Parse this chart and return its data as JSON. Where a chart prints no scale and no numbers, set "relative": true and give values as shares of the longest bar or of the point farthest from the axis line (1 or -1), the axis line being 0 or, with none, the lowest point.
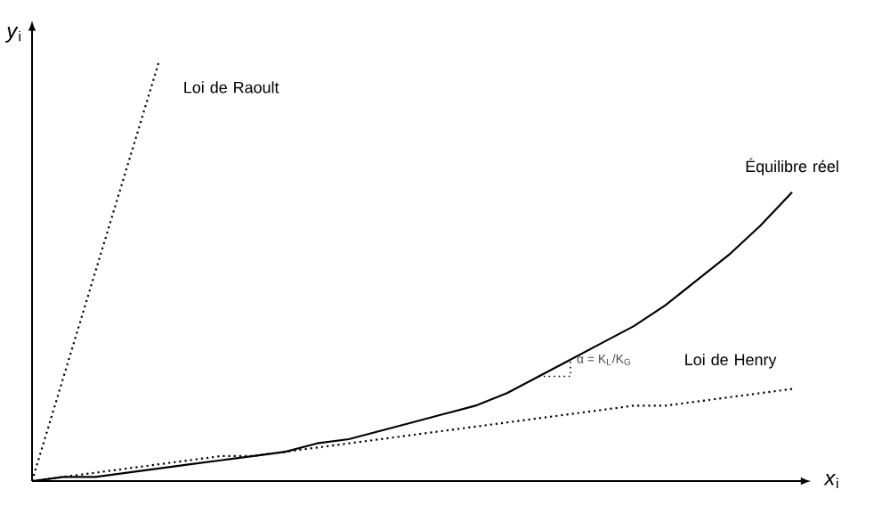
{
  "chart_data": {
    "type": "line",
    "relative": true,
    "xlabel": "*x*$_{i}$",
    "ylabel": "*y*$_{i}$",
    "marker": "none",
    "categories": [
      null,
      null,
      null,
      null,
      null,
      null,
      null,
      null,
      null,
      null,
      null,
      null,
      null,
      null,
      null,
      null,
      null,
      null,
      null,
      null,
      null,
      null,
      null,
      null,
      null
    ],
    "series": [
      {
        "name": "Loi de Raoult",
        "color": "#000000",
        "line_style": "dotted",
        "values": [
          0,
          0.25,
          0.5,
          0.75,
          1,
          null,
          null,
          null,
          null,
          null,
          null,
          null,
          null,
          null,
          null,
          null,
          null,
          null,
          null,
          null,
          null,
          null,
          null,
          null,
          null
        ]
      },
      {
        "name": "Équilibre réel",
        "color": "#000000",
        "line_style": "solid",
        "values": [
          0,
          0.01,
          0.01,
          0.02,
          0.03,
          0.04,
          0.05,
          0.06,
          0.07,
          0.09,
          0.1,
          0.12,
          0.14,
          0.16,
          0.18,
          0.21,
          0.25,
          0.29,
          0.33,
          0.37,
          0.42,
          0.48,
          0.54,
          0.61,
          0.69
        ]
      },
      {
        "name": "Loi de Henry",
        "color": "#000000",
        "line_style": "dotted",
        "values": [
          0,
          0.01,
          0.02,
          0.03,
          0.04,
          0.05,
          0.06,
          0.06,
          0.07,
          0.08,
          0.09,
          0.1,
          0.11,
          0.12,
          0.13,
          0.14,
          0.15,
          0.16,
          0.17,
          0.18,
          0.18,
          0.19,
          0.2,
          0.21,
          0.22
        ]
      }
    ],
    "annotations": [
      "α = K$_{L}$/K$_{G}$"
    ]
  }
}
